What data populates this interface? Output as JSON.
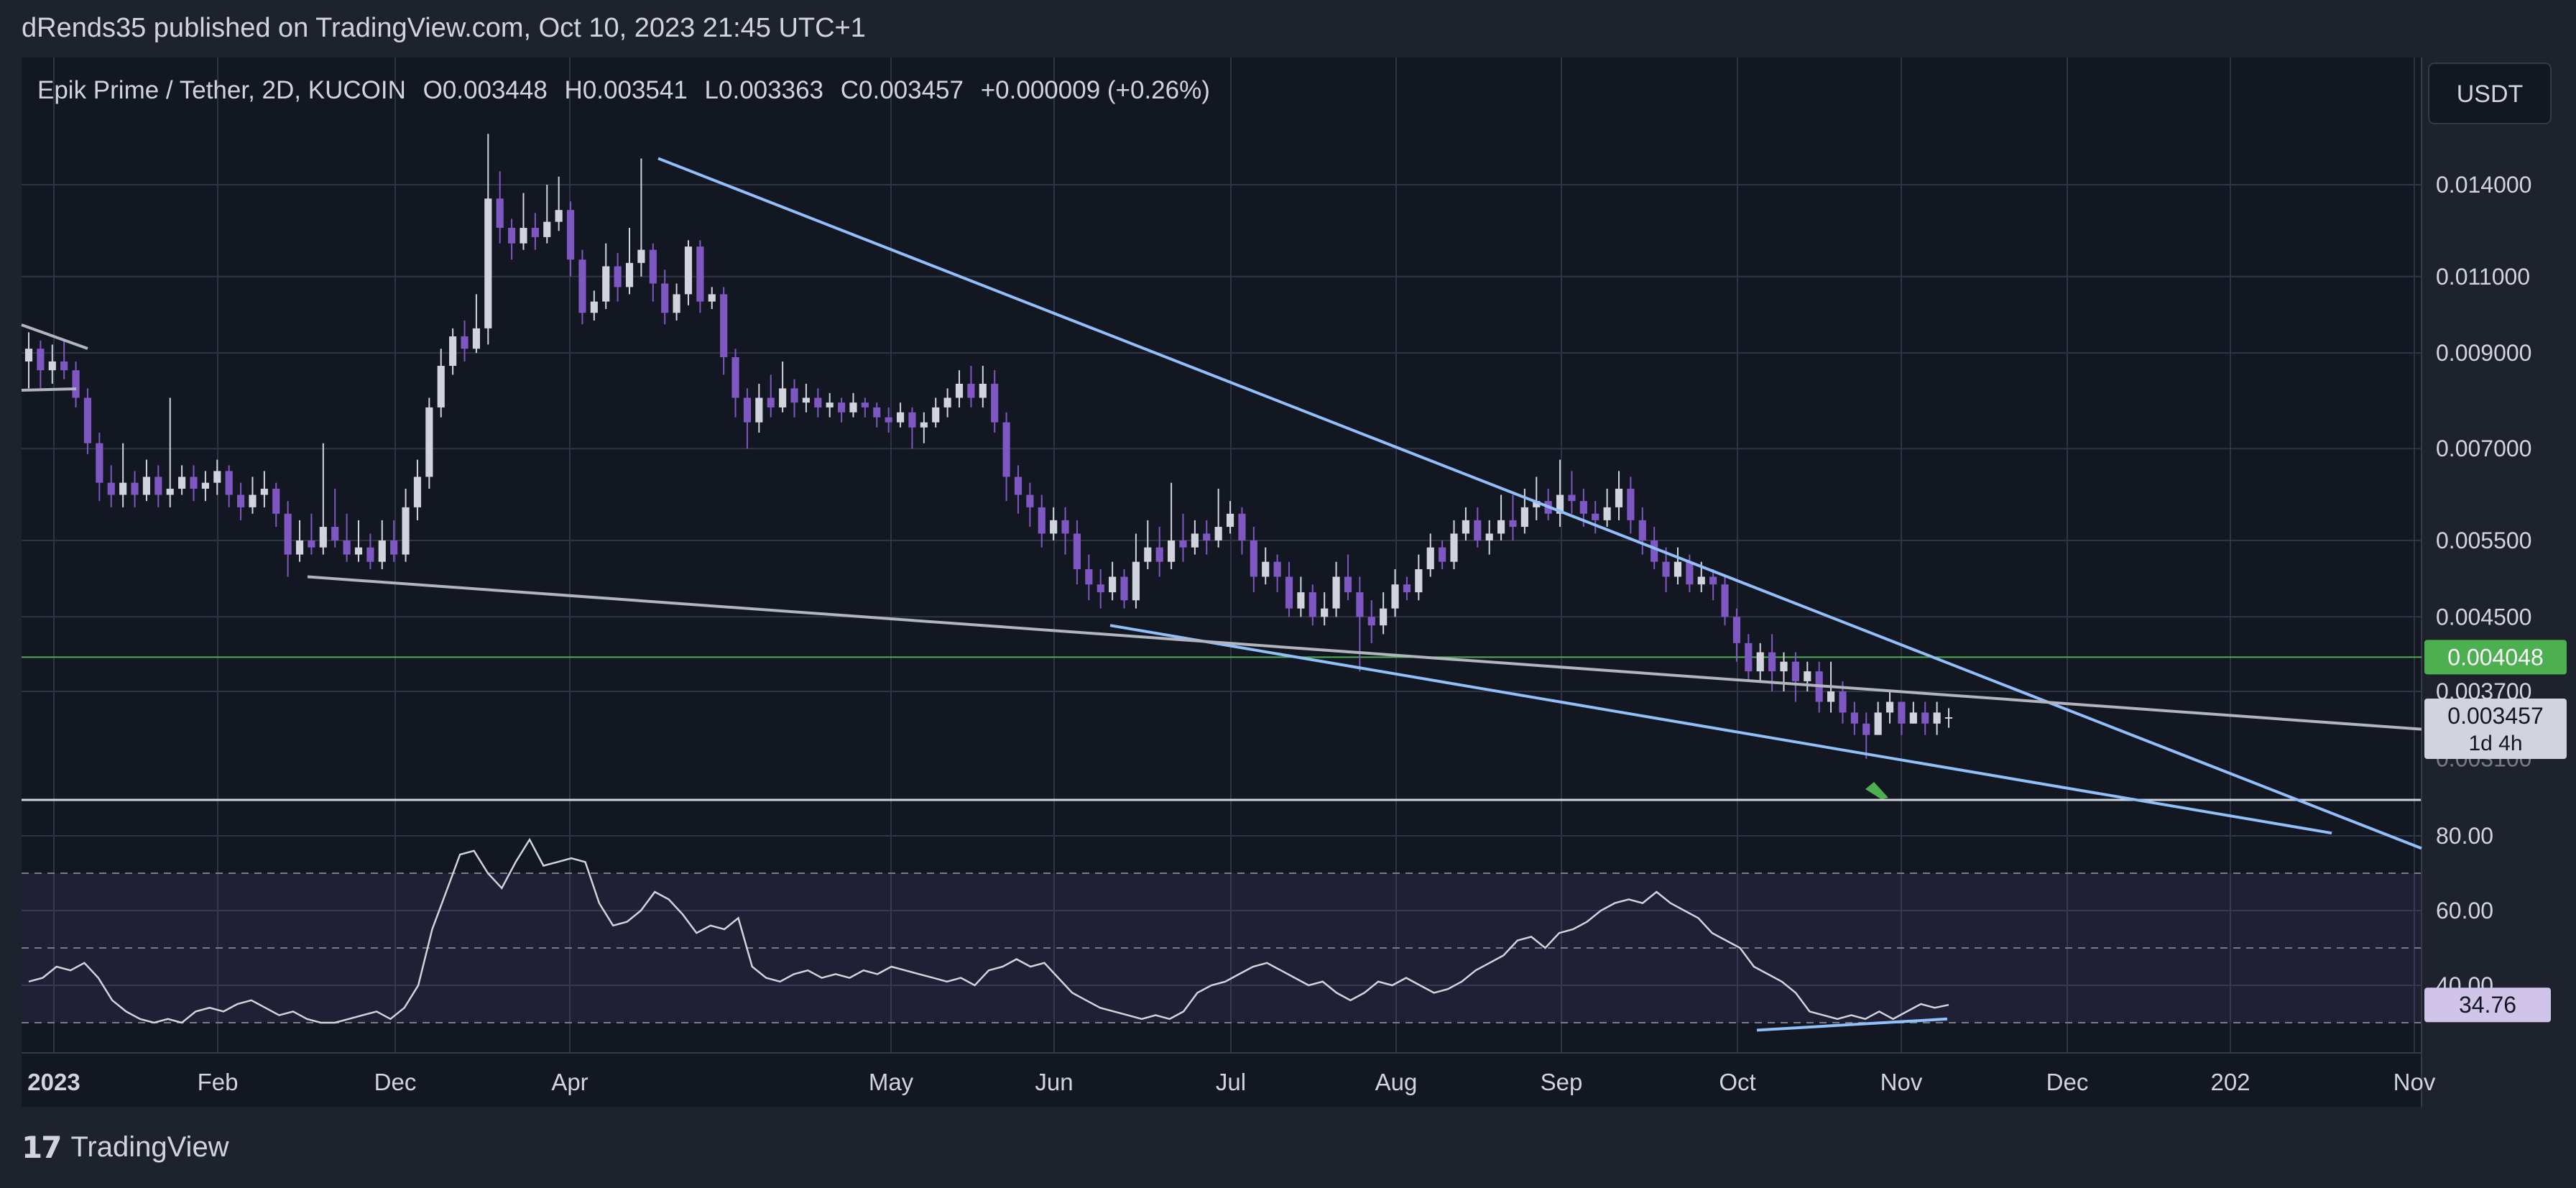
{
  "header": {
    "publisher_line": "dRends35 published on TradingView.com, Oct 10, 2023 21:45 UTC+1"
  },
  "footer": {
    "brand": "TradingView"
  },
  "colors": {
    "background": "#131722",
    "frame": "#1e222d",
    "grid": "#2f3445",
    "text": "#d1d4dc",
    "bull_candle": "#d1d4dc",
    "bear_candle": "#7e57c2",
    "trendline_blue": "#90bff9",
    "trendline_gray": "#b2b5be",
    "level_green": "#4caf50",
    "rsi_line": "#d1d4dc",
    "rsi_band": "#7e57c2"
  },
  "chart_data": [
    {
      "type": "candlestick",
      "legend": {
        "symbol": "Epik Prime / Tether, 2D, KUCOIN",
        "open": "O0.003448",
        "high": "H0.003541",
        "low": "L0.003363",
        "close": "C0.003457",
        "change": "+0.000009 (+0.26%)"
      },
      "currency": "USDT",
      "y_axis_ticks": [
        "0.014000",
        "0.011000",
        "0.009000",
        "0.007000",
        "0.005500",
        "0.004500",
        "0.003700"
      ],
      "y_axis_tick_values": [
        0.014,
        0.011,
        0.009,
        0.007,
        0.0055,
        0.0045,
        0.0037
      ],
      "y_axis_partial_tick": "0.003100",
      "x_axis_ticks": [
        "Nov",
        "Dec",
        "2023",
        "Feb",
        "Apr",
        "May",
        "Jun",
        "Jul",
        "Aug",
        "Sep",
        "Oct",
        "Nov",
        "Dec",
        "202"
      ],
      "horizontal_level": {
        "value": 0.004048,
        "label": "0.004048"
      },
      "last_price": {
        "value": 0.003457,
        "label": "0.003457",
        "countdown": "1d 4h"
      },
      "ohlc": [
        [
          0.0088,
          0.0091,
          0.0095,
          0.0082
        ],
        [
          0.0091,
          0.0086,
          0.0093,
          0.0082
        ],
        [
          0.0086,
          0.0088,
          0.0092,
          0.0083
        ],
        [
          0.0088,
          0.0086,
          0.0093,
          0.0084
        ],
        [
          0.0086,
          0.008,
          0.0088,
          0.0078
        ],
        [
          0.008,
          0.0071,
          0.0082,
          0.0069
        ],
        [
          0.0071,
          0.0064,
          0.0073,
          0.0061
        ],
        [
          0.0064,
          0.0062,
          0.0067,
          0.006
        ],
        [
          0.0062,
          0.0064,
          0.0071,
          0.006
        ],
        [
          0.0064,
          0.0062,
          0.0066,
          0.006
        ],
        [
          0.0062,
          0.0065,
          0.0068,
          0.0061
        ],
        [
          0.0065,
          0.0062,
          0.0067,
          0.006
        ],
        [
          0.0062,
          0.0063,
          0.008,
          0.006
        ],
        [
          0.0063,
          0.0065,
          0.0067,
          0.0062
        ],
        [
          0.0065,
          0.0063,
          0.0067,
          0.0061
        ],
        [
          0.0063,
          0.0064,
          0.0066,
          0.0061
        ],
        [
          0.0064,
          0.0066,
          0.0068,
          0.0062
        ],
        [
          0.0066,
          0.0062,
          0.0067,
          0.006
        ],
        [
          0.0062,
          0.006,
          0.0064,
          0.0058
        ],
        [
          0.006,
          0.0062,
          0.0065,
          0.0059
        ],
        [
          0.0062,
          0.0063,
          0.0066,
          0.006
        ],
        [
          0.0063,
          0.0059,
          0.0064,
          0.0057
        ],
        [
          0.0059,
          0.0053,
          0.0061,
          0.005
        ],
        [
          0.0053,
          0.0055,
          0.0058,
          0.0052
        ],
        [
          0.0055,
          0.0054,
          0.0059,
          0.0053
        ],
        [
          0.0054,
          0.0057,
          0.0071,
          0.0053
        ],
        [
          0.0057,
          0.0055,
          0.0063,
          0.0054
        ],
        [
          0.0055,
          0.0053,
          0.0059,
          0.0052
        ],
        [
          0.0053,
          0.0054,
          0.0058,
          0.0052
        ],
        [
          0.0054,
          0.0052,
          0.0056,
          0.0051
        ],
        [
          0.0052,
          0.0055,
          0.0058,
          0.0051
        ],
        [
          0.0055,
          0.0053,
          0.0058,
          0.0052
        ],
        [
          0.0053,
          0.006,
          0.0063,
          0.0052
        ],
        [
          0.006,
          0.0065,
          0.0068,
          0.0058
        ],
        [
          0.0065,
          0.0078,
          0.008,
          0.0063
        ],
        [
          0.0078,
          0.0087,
          0.0091,
          0.0076
        ],
        [
          0.0087,
          0.0094,
          0.0096,
          0.0085
        ],
        [
          0.0094,
          0.0091,
          0.0098,
          0.0088
        ],
        [
          0.0091,
          0.0096,
          0.0105,
          0.009
        ],
        [
          0.0096,
          0.0135,
          0.016,
          0.0092
        ],
        [
          0.0135,
          0.0125,
          0.0145,
          0.012
        ],
        [
          0.0125,
          0.012,
          0.0128,
          0.0115
        ],
        [
          0.012,
          0.0125,
          0.0137,
          0.0118
        ],
        [
          0.0125,
          0.0122,
          0.013,
          0.0118
        ],
        [
          0.0122,
          0.0127,
          0.014,
          0.012
        ],
        [
          0.0127,
          0.0131,
          0.0143,
          0.0124
        ],
        [
          0.0131,
          0.0115,
          0.0134,
          0.011
        ],
        [
          0.0115,
          0.01,
          0.0118,
          0.0097
        ],
        [
          0.01,
          0.0103,
          0.0106,
          0.0098
        ],
        [
          0.0103,
          0.0113,
          0.012,
          0.0101
        ],
        [
          0.0113,
          0.0107,
          0.0117,
          0.0103
        ],
        [
          0.0107,
          0.0114,
          0.0125,
          0.0105
        ],
        [
          0.0114,
          0.0118,
          0.015,
          0.011
        ],
        [
          0.0118,
          0.0108,
          0.012,
          0.0103
        ],
        [
          0.0108,
          0.01,
          0.0112,
          0.0097
        ],
        [
          0.01,
          0.0105,
          0.0108,
          0.0098
        ],
        [
          0.0105,
          0.0119,
          0.0121,
          0.0102
        ],
        [
          0.0119,
          0.0103,
          0.0121,
          0.01
        ],
        [
          0.0103,
          0.0105,
          0.0107,
          0.0101
        ],
        [
          0.0105,
          0.0089,
          0.0107,
          0.0085
        ],
        [
          0.0089,
          0.008,
          0.0091,
          0.0076
        ],
        [
          0.008,
          0.0075,
          0.0082,
          0.007
        ],
        [
          0.0075,
          0.008,
          0.0083,
          0.0073
        ],
        [
          0.008,
          0.0078,
          0.0085,
          0.0076
        ],
        [
          0.0078,
          0.0082,
          0.0088,
          0.0077
        ],
        [
          0.0082,
          0.0079,
          0.0084,
          0.0076
        ],
        [
          0.0079,
          0.008,
          0.0083,
          0.0077
        ],
        [
          0.008,
          0.0078,
          0.0082,
          0.0076
        ],
        [
          0.0078,
          0.0079,
          0.0081,
          0.0076
        ],
        [
          0.0079,
          0.0077,
          0.008,
          0.0075
        ],
        [
          0.0077,
          0.0079,
          0.0081,
          0.0076
        ],
        [
          0.0079,
          0.0078,
          0.008,
          0.0076
        ],
        [
          0.0078,
          0.0076,
          0.0079,
          0.0074
        ],
        [
          0.0076,
          0.0075,
          0.0078,
          0.0073
        ],
        [
          0.0075,
          0.0077,
          0.0079,
          0.0074
        ],
        [
          0.0077,
          0.0074,
          0.0078,
          0.007
        ],
        [
          0.0074,
          0.0075,
          0.0077,
          0.0071
        ],
        [
          0.0075,
          0.0078,
          0.008,
          0.0074
        ],
        [
          0.0078,
          0.008,
          0.0082,
          0.0076
        ],
        [
          0.008,
          0.0083,
          0.0086,
          0.0078
        ],
        [
          0.0083,
          0.008,
          0.0087,
          0.0078
        ],
        [
          0.008,
          0.0083,
          0.0087,
          0.0078
        ],
        [
          0.0083,
          0.0075,
          0.0086,
          0.0073
        ],
        [
          0.0075,
          0.0065,
          0.0077,
          0.0061
        ],
        [
          0.0065,
          0.0062,
          0.0067,
          0.0059
        ],
        [
          0.0062,
          0.006,
          0.0064,
          0.0057
        ],
        [
          0.006,
          0.0056,
          0.0062,
          0.0054
        ],
        [
          0.0056,
          0.0058,
          0.006,
          0.0055
        ],
        [
          0.0058,
          0.0056,
          0.006,
          0.0053
        ],
        [
          0.0056,
          0.0051,
          0.0058,
          0.0049
        ],
        [
          0.0051,
          0.0049,
          0.0053,
          0.0047
        ],
        [
          0.0049,
          0.0048,
          0.0051,
          0.0046
        ],
        [
          0.0048,
          0.005,
          0.0052,
          0.0047
        ],
        [
          0.005,
          0.0047,
          0.0051,
          0.0046
        ],
        [
          0.0047,
          0.0052,
          0.0056,
          0.0046
        ],
        [
          0.0052,
          0.0054,
          0.0058,
          0.0051
        ],
        [
          0.0054,
          0.0052,
          0.0057,
          0.005
        ],
        [
          0.0052,
          0.0055,
          0.0064,
          0.0051
        ],
        [
          0.0055,
          0.0054,
          0.0059,
          0.0052
        ],
        [
          0.0054,
          0.0056,
          0.0058,
          0.0053
        ],
        [
          0.0056,
          0.0055,
          0.0058,
          0.0053
        ],
        [
          0.0055,
          0.0057,
          0.0063,
          0.0054
        ],
        [
          0.0057,
          0.0059,
          0.0061,
          0.0056
        ],
        [
          0.0059,
          0.0055,
          0.006,
          0.0053
        ],
        [
          0.0055,
          0.005,
          0.0057,
          0.0048
        ],
        [
          0.005,
          0.0052,
          0.0054,
          0.0049
        ],
        [
          0.0052,
          0.005,
          0.0053,
          0.0048
        ],
        [
          0.005,
          0.0046,
          0.0052,
          0.0045
        ],
        [
          0.0046,
          0.0048,
          0.005,
          0.0045
        ],
        [
          0.0048,
          0.0045,
          0.0049,
          0.0044
        ],
        [
          0.0045,
          0.0046,
          0.0048,
          0.0044
        ],
        [
          0.0046,
          0.005,
          0.0052,
          0.0045
        ],
        [
          0.005,
          0.0048,
          0.0053,
          0.0047
        ],
        [
          0.0048,
          0.0045,
          0.005,
          0.0039
        ],
        [
          0.0045,
          0.0044,
          0.0047,
          0.0042
        ],
        [
          0.0044,
          0.0046,
          0.0048,
          0.0043
        ],
        [
          0.0046,
          0.0049,
          0.0051,
          0.0045
        ],
        [
          0.0049,
          0.0048,
          0.005,
          0.0047
        ],
        [
          0.0048,
          0.0051,
          0.0053,
          0.0047
        ],
        [
          0.0051,
          0.0054,
          0.0056,
          0.005
        ],
        [
          0.0054,
          0.0052,
          0.0055,
          0.0051
        ],
        [
          0.0052,
          0.0056,
          0.0058,
          0.0051
        ],
        [
          0.0056,
          0.0058,
          0.006,
          0.0055
        ],
        [
          0.0058,
          0.0055,
          0.006,
          0.0054
        ],
        [
          0.0055,
          0.0056,
          0.0058,
          0.0053
        ],
        [
          0.0056,
          0.0058,
          0.0062,
          0.0055
        ],
        [
          0.0058,
          0.0057,
          0.0062,
          0.0055
        ],
        [
          0.0057,
          0.006,
          0.0063,
          0.0056
        ],
        [
          0.006,
          0.0061,
          0.0065,
          0.0058
        ],
        [
          0.0061,
          0.0059,
          0.0063,
          0.0058
        ],
        [
          0.0059,
          0.0062,
          0.0068,
          0.0057
        ],
        [
          0.0062,
          0.0061,
          0.0066,
          0.0059
        ],
        [
          0.0061,
          0.0059,
          0.0063,
          0.0057
        ],
        [
          0.0059,
          0.0058,
          0.0061,
          0.0056
        ],
        [
          0.0058,
          0.006,
          0.0063,
          0.0057
        ],
        [
          0.006,
          0.0063,
          0.0066,
          0.0058
        ],
        [
          0.0063,
          0.0058,
          0.0065,
          0.0056
        ],
        [
          0.0058,
          0.0055,
          0.006,
          0.0053
        ],
        [
          0.0055,
          0.0052,
          0.0057,
          0.0051
        ],
        [
          0.0052,
          0.005,
          0.0054,
          0.0048
        ],
        [
          0.005,
          0.0052,
          0.0054,
          0.0049
        ],
        [
          0.0052,
          0.0049,
          0.0053,
          0.0048
        ],
        [
          0.0049,
          0.005,
          0.0052,
          0.0048
        ],
        [
          0.005,
          0.0049,
          0.0051,
          0.0047
        ],
        [
          0.0049,
          0.0045,
          0.005,
          0.0044
        ],
        [
          0.0045,
          0.0042,
          0.0046,
          0.004
        ],
        [
          0.0042,
          0.0039,
          0.0043,
          0.0038
        ],
        [
          0.0039,
          0.0041,
          0.0042,
          0.0038
        ],
        [
          0.0041,
          0.0039,
          0.0043,
          0.0037
        ],
        [
          0.0039,
          0.004,
          0.0041,
          0.0037
        ],
        [
          0.004,
          0.0038,
          0.0041,
          0.0036
        ],
        [
          0.0038,
          0.0039,
          0.004,
          0.0037
        ],
        [
          0.0039,
          0.0036,
          0.004,
          0.0035
        ],
        [
          0.0036,
          0.0037,
          0.004,
          0.0035
        ],
        [
          0.0037,
          0.0035,
          0.0038,
          0.0034
        ],
        [
          0.0035,
          0.0034,
          0.0036,
          0.0033
        ],
        [
          0.0034,
          0.0033,
          0.0035,
          0.0031
        ],
        [
          0.0033,
          0.0035,
          0.0036,
          0.0033
        ],
        [
          0.0035,
          0.0036,
          0.0037,
          0.0034
        ],
        [
          0.0036,
          0.0034,
          0.0036,
          0.0033
        ],
        [
          0.0034,
          0.0035,
          0.0036,
          0.0034
        ],
        [
          0.0035,
          0.0034,
          0.0036,
          0.0033
        ],
        [
          0.0034,
          0.0035,
          0.0036,
          0.0033
        ],
        [
          0.003448,
          0.003457,
          0.003541,
          0.003363
        ]
      ]
    },
    {
      "type": "line",
      "name": "RSI",
      "y_axis_ticks": [
        "80.00",
        "60.00",
        "40.00"
      ],
      "y_axis_tick_values": [
        80,
        60,
        40
      ],
      "y_partial_range": [
        30,
        85
      ],
      "bands": {
        "upper": 70,
        "middle": 50,
        "lower": 30
      },
      "last_value": {
        "value": 34.76,
        "label": "34.76"
      },
      "values": [
        41,
        42,
        45,
        44,
        46,
        42,
        36,
        33,
        31,
        30,
        31,
        30,
        33,
        34,
        33,
        35,
        36,
        34,
        32,
        33,
        31,
        30,
        30,
        31,
        32,
        33,
        31,
        34,
        40,
        55,
        65,
        75,
        76,
        70,
        66,
        73,
        79,
        72,
        73,
        74,
        73,
        62,
        56,
        57,
        60,
        65,
        63,
        59,
        54,
        56,
        55,
        58,
        45,
        42,
        41,
        43,
        44,
        42,
        43,
        42,
        44,
        43,
        45,
        44,
        43,
        42,
        41,
        42,
        40,
        44,
        45,
        47,
        45,
        46,
        42,
        38,
        36,
        34,
        33,
        32,
        31,
        32,
        31,
        33,
        38,
        40,
        41,
        43,
        45,
        46,
        44,
        42,
        40,
        41,
        38,
        36,
        38,
        41,
        40,
        42,
        40,
        38,
        39,
        41,
        44,
        46,
        48,
        52,
        53,
        50,
        54,
        55,
        57,
        60,
        62,
        63,
        62,
        65,
        62,
        60,
        58,
        54,
        52,
        50,
        45,
        43,
        41,
        38,
        33,
        32,
        31,
        32,
        31,
        33,
        31,
        33,
        35,
        34,
        34.76
      ]
    },
    {
      "type": "annotations",
      "lines": [
        {
          "name": "falling-wedge-upper",
          "from": [
            "Feb",
            0.015
          ],
          "to": [
            "202",
            0.00245
          ]
        },
        {
          "name": "falling-wedge-lower",
          "from": [
            "May",
            0.0044
          ],
          "to": [
            "Dec",
            0.003
          ]
        },
        {
          "name": "gray-support-line",
          "from": [
            "Dec",
            0.005
          ],
          "to": [
            "202",
            0.0033
          ]
        },
        {
          "name": "rsi-divergence-line",
          "from": [
            "Sep",
            28
          ],
          "to": [
            "Oct",
            31
          ]
        }
      ]
    }
  ]
}
